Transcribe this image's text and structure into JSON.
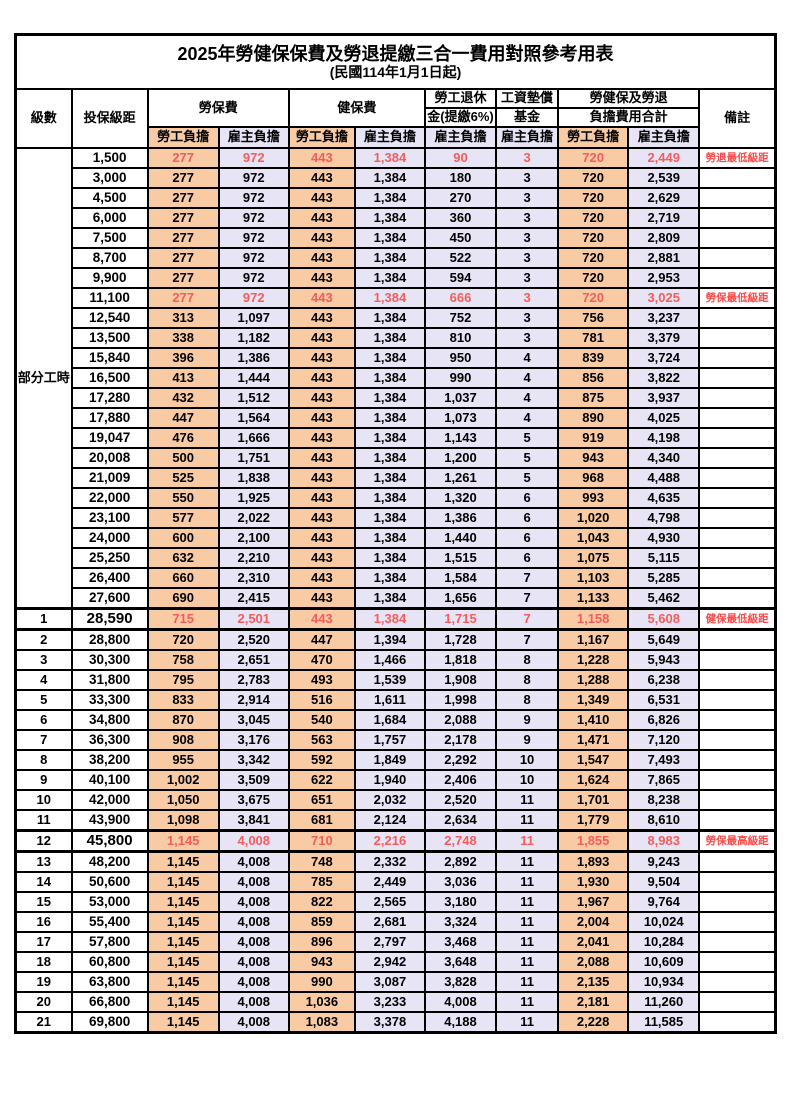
{
  "table": {
    "title": "2025年勞健保保費及勞退提繳三合一費用對照參考用表",
    "subtitle": "(民國114年1月1日起)",
    "columns": {
      "level": "級數",
      "salary": "投保級距",
      "labor_fee": "勞保費",
      "health_fee": "健保費",
      "pension_line1": "勞工退休",
      "pension_line2": "金(提繳6%)",
      "wage_fund_line1": "工資墊償",
      "wage_fund_line2": "基金",
      "total_line1": "勞健保及勞退",
      "total_line2": "負擔費用合計",
      "note": "備註",
      "employee": "勞工負擔",
      "employer": "雇主負擔"
    },
    "part_time_label": "部分工時",
    "colors": {
      "employee_bg": "#F8CBA4",
      "employer_bg": "#E6E4F5",
      "highlight_text": "#F55C5C",
      "note_text": "#FB4A4A",
      "border": "#000000"
    },
    "rows": [
      {
        "level": "",
        "salary": "1,500",
        "values": [
          "277",
          "972",
          "443",
          "1,384",
          "90",
          "3",
          "720",
          "2,449"
        ],
        "note": "勞退最低級距",
        "red": true
      },
      {
        "level": "",
        "salary": "3,000",
        "values": [
          "277",
          "972",
          "443",
          "1,384",
          "180",
          "3",
          "720",
          "2,539"
        ],
        "note": ""
      },
      {
        "level": "",
        "salary": "4,500",
        "values": [
          "277",
          "972",
          "443",
          "1,384",
          "270",
          "3",
          "720",
          "2,629"
        ],
        "note": ""
      },
      {
        "level": "",
        "salary": "6,000",
        "values": [
          "277",
          "972",
          "443",
          "1,384",
          "360",
          "3",
          "720",
          "2,719"
        ],
        "note": ""
      },
      {
        "level": "",
        "salary": "7,500",
        "values": [
          "277",
          "972",
          "443",
          "1,384",
          "450",
          "3",
          "720",
          "2,809"
        ],
        "note": ""
      },
      {
        "level": "",
        "salary": "8,700",
        "values": [
          "277",
          "972",
          "443",
          "1,384",
          "522",
          "3",
          "720",
          "2,881"
        ],
        "note": ""
      },
      {
        "level": "",
        "salary": "9,900",
        "values": [
          "277",
          "972",
          "443",
          "1,384",
          "594",
          "3",
          "720",
          "2,953"
        ],
        "note": ""
      },
      {
        "level": "",
        "salary": "11,100",
        "values": [
          "277",
          "972",
          "443",
          "1,384",
          "666",
          "3",
          "720",
          "3,025"
        ],
        "note": "勞保最低級距",
        "red": true
      },
      {
        "level": "",
        "salary": "12,540",
        "values": [
          "313",
          "1,097",
          "443",
          "1,384",
          "752",
          "3",
          "756",
          "3,237"
        ],
        "note": ""
      },
      {
        "level": "",
        "salary": "13,500",
        "values": [
          "338",
          "1,182",
          "443",
          "1,384",
          "810",
          "3",
          "781",
          "3,379"
        ],
        "note": ""
      },
      {
        "level": "",
        "salary": "15,840",
        "values": [
          "396",
          "1,386",
          "443",
          "1,384",
          "950",
          "4",
          "839",
          "3,724"
        ],
        "note": ""
      },
      {
        "level": "",
        "salary": "16,500",
        "values": [
          "413",
          "1,444",
          "443",
          "1,384",
          "990",
          "4",
          "856",
          "3,822"
        ],
        "note": ""
      },
      {
        "level": "",
        "salary": "17,280",
        "values": [
          "432",
          "1,512",
          "443",
          "1,384",
          "1,037",
          "4",
          "875",
          "3,937"
        ],
        "note": ""
      },
      {
        "level": "",
        "salary": "17,880",
        "values": [
          "447",
          "1,564",
          "443",
          "1,384",
          "1,073",
          "4",
          "890",
          "4,025"
        ],
        "note": ""
      },
      {
        "level": "",
        "salary": "19,047",
        "values": [
          "476",
          "1,666",
          "443",
          "1,384",
          "1,143",
          "5",
          "919",
          "4,198"
        ],
        "note": ""
      },
      {
        "level": "",
        "salary": "20,008",
        "values": [
          "500",
          "1,751",
          "443",
          "1,384",
          "1,200",
          "5",
          "943",
          "4,340"
        ],
        "note": ""
      },
      {
        "level": "",
        "salary": "21,009",
        "values": [
          "525",
          "1,838",
          "443",
          "1,384",
          "1,261",
          "5",
          "968",
          "4,488"
        ],
        "note": ""
      },
      {
        "level": "",
        "salary": "22,000",
        "values": [
          "550",
          "1,925",
          "443",
          "1,384",
          "1,320",
          "6",
          "993",
          "4,635"
        ],
        "note": ""
      },
      {
        "level": "",
        "salary": "23,100",
        "values": [
          "577",
          "2,022",
          "443",
          "1,384",
          "1,386",
          "6",
          "1,020",
          "4,798"
        ],
        "note": ""
      },
      {
        "level": "",
        "salary": "24,000",
        "values": [
          "600",
          "2,100",
          "443",
          "1,384",
          "1,440",
          "6",
          "1,043",
          "4,930"
        ],
        "note": ""
      },
      {
        "level": "",
        "salary": "25,250",
        "values": [
          "632",
          "2,210",
          "443",
          "1,384",
          "1,515",
          "6",
          "1,075",
          "5,115"
        ],
        "note": ""
      },
      {
        "level": "",
        "salary": "26,400",
        "values": [
          "660",
          "2,310",
          "443",
          "1,384",
          "1,584",
          "7",
          "1,103",
          "5,285"
        ],
        "note": ""
      },
      {
        "level": "",
        "salary": "27,600",
        "values": [
          "690",
          "2,415",
          "443",
          "1,384",
          "1,656",
          "7",
          "1,133",
          "5,462"
        ],
        "note": ""
      },
      {
        "level": "1",
        "salary": "28,590",
        "values": [
          "715",
          "2,501",
          "443",
          "1,384",
          "1,715",
          "7",
          "1,158",
          "5,608"
        ],
        "note": "健保最低級距",
        "red": true,
        "big": true
      },
      {
        "level": "2",
        "salary": "28,800",
        "values": [
          "720",
          "2,520",
          "447",
          "1,394",
          "1,728",
          "7",
          "1,167",
          "5,649"
        ],
        "note": ""
      },
      {
        "level": "3",
        "salary": "30,300",
        "values": [
          "758",
          "2,651",
          "470",
          "1,466",
          "1,818",
          "8",
          "1,228",
          "5,943"
        ],
        "note": ""
      },
      {
        "level": "4",
        "salary": "31,800",
        "values": [
          "795",
          "2,783",
          "493",
          "1,539",
          "1,908",
          "8",
          "1,288",
          "6,238"
        ],
        "note": ""
      },
      {
        "level": "5",
        "salary": "33,300",
        "values": [
          "833",
          "2,914",
          "516",
          "1,611",
          "1,998",
          "8",
          "1,349",
          "6,531"
        ],
        "note": ""
      },
      {
        "level": "6",
        "salary": "34,800",
        "values": [
          "870",
          "3,045",
          "540",
          "1,684",
          "2,088",
          "9",
          "1,410",
          "6,826"
        ],
        "note": ""
      },
      {
        "level": "7",
        "salary": "36,300",
        "values": [
          "908",
          "3,176",
          "563",
          "1,757",
          "2,178",
          "9",
          "1,471",
          "7,120"
        ],
        "note": ""
      },
      {
        "level": "8",
        "salary": "38,200",
        "values": [
          "955",
          "3,342",
          "592",
          "1,849",
          "2,292",
          "10",
          "1,547",
          "7,493"
        ],
        "note": ""
      },
      {
        "level": "9",
        "salary": "40,100",
        "values": [
          "1,002",
          "3,509",
          "622",
          "1,940",
          "2,406",
          "10",
          "1,624",
          "7,865"
        ],
        "note": ""
      },
      {
        "level": "10",
        "salary": "42,000",
        "values": [
          "1,050",
          "3,675",
          "651",
          "2,032",
          "2,520",
          "11",
          "1,701",
          "8,238"
        ],
        "note": ""
      },
      {
        "level": "11",
        "salary": "43,900",
        "values": [
          "1,098",
          "3,841",
          "681",
          "2,124",
          "2,634",
          "11",
          "1,779",
          "8,610"
        ],
        "note": ""
      },
      {
        "level": "12",
        "salary": "45,800",
        "values": [
          "1,145",
          "4,008",
          "710",
          "2,216",
          "2,748",
          "11",
          "1,855",
          "8,983"
        ],
        "note": "勞保最高級距",
        "red": true,
        "big": true
      },
      {
        "level": "13",
        "salary": "48,200",
        "values": [
          "1,145",
          "4,008",
          "748",
          "2,332",
          "2,892",
          "11",
          "1,893",
          "9,243"
        ],
        "note": ""
      },
      {
        "level": "14",
        "salary": "50,600",
        "values": [
          "1,145",
          "4,008",
          "785",
          "2,449",
          "3,036",
          "11",
          "1,930",
          "9,504"
        ],
        "note": ""
      },
      {
        "level": "15",
        "salary": "53,000",
        "values": [
          "1,145",
          "4,008",
          "822",
          "2,565",
          "3,180",
          "11",
          "1,967",
          "9,764"
        ],
        "note": ""
      },
      {
        "level": "16",
        "salary": "55,400",
        "values": [
          "1,145",
          "4,008",
          "859",
          "2,681",
          "3,324",
          "11",
          "2,004",
          "10,024"
        ],
        "note": ""
      },
      {
        "level": "17",
        "salary": "57,800",
        "values": [
          "1,145",
          "4,008",
          "896",
          "2,797",
          "3,468",
          "11",
          "2,041",
          "10,284"
        ],
        "note": ""
      },
      {
        "level": "18",
        "salary": "60,800",
        "values": [
          "1,145",
          "4,008",
          "943",
          "2,942",
          "3,648",
          "11",
          "2,088",
          "10,609"
        ],
        "note": ""
      },
      {
        "level": "19",
        "salary": "63,800",
        "values": [
          "1,145",
          "4,008",
          "990",
          "3,087",
          "3,828",
          "11",
          "2,135",
          "10,934"
        ],
        "note": ""
      },
      {
        "level": "20",
        "salary": "66,800",
        "values": [
          "1,145",
          "4,008",
          "1,036",
          "3,233",
          "4,008",
          "11",
          "2,181",
          "11,260"
        ],
        "note": ""
      },
      {
        "level": "21",
        "salary": "69,800",
        "values": [
          "1,145",
          "4,008",
          "1,083",
          "3,378",
          "4,188",
          "11",
          "2,228",
          "11,585"
        ],
        "note": ""
      }
    ]
  }
}
